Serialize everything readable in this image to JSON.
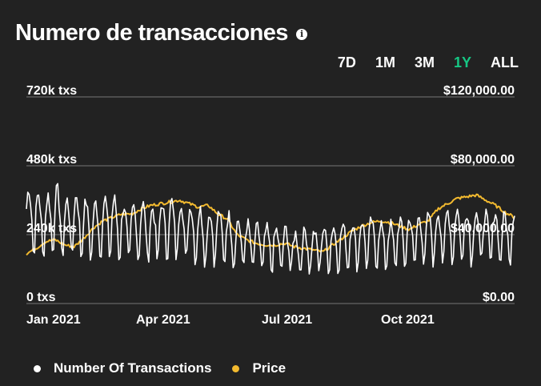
{
  "title": "Numero de transacciones",
  "info_icon": "info-icon",
  "ranges": [
    {
      "label": "7D",
      "active": false
    },
    {
      "label": "1M",
      "active": false
    },
    {
      "label": "3M",
      "active": false
    },
    {
      "label": "1Y",
      "active": true
    },
    {
      "label": "ALL",
      "active": false
    }
  ],
  "colors": {
    "background": "#222222",
    "transactions": "#ffffff",
    "price": "#f3ba2f",
    "active_range": "#16c784",
    "grid": "#777777"
  },
  "chart_data": {
    "type": "line",
    "title": "Numero de transacciones",
    "x_ticks": [
      "Jan 2021",
      "Apr 2021",
      "Jul 2021",
      "Oct 2021"
    ],
    "y_left_ticks": [
      "0 txs",
      "240k txs",
      "480k txs",
      "720k txs"
    ],
    "y_right_ticks": [
      "$0.00",
      "$40,000.00",
      "$80,000.00",
      "$120,000.00"
    ],
    "y_left_range": [
      0,
      720000
    ],
    "y_right_range": [
      0,
      120000
    ],
    "grid": true,
    "legend": "bottom-left",
    "series": [
      {
        "name": "Number Of Transactions",
        "axis": "left",
        "color": "#ffffff",
        "weekly_values": [
          330000,
          320000,
          300000,
          340000,
          290000,
          315000,
          295000,
          285000,
          300000,
          305000,
          280000,
          275000,
          290000,
          270000,
          285000,
          295000,
          290000,
          280000,
          270000,
          260000,
          265000,
          255000,
          240000,
          230000,
          220000,
          215000,
          210000,
          215000,
          200000,
          210000,
          205000,
          215000,
          220000,
          225000,
          230000,
          235000,
          240000,
          230000,
          225000,
          240000,
          245000,
          250000,
          255000,
          260000,
          265000,
          270000,
          262000,
          268000,
          258000,
          262000,
          255000,
          258000
        ]
      },
      {
        "name": "Price",
        "axis": "right",
        "color": "#f3ba2f",
        "weekly_values": [
          29000,
          32000,
          36000,
          37000,
          34000,
          33000,
          38000,
          44000,
          48000,
          50000,
          52000,
          52000,
          55000,
          57000,
          58000,
          59000,
          60000,
          58000,
          56000,
          57000,
          52000,
          49000,
          40000,
          37000,
          35000,
          34000,
          34000,
          35000,
          33000,
          32000,
          31000,
          30000,
          34000,
          38000,
          42000,
          45000,
          47000,
          48000,
          47000,
          45000,
          43000,
          46000,
          48000,
          55000,
          58000,
          61000,
          62000,
          63000,
          60000,
          57000,
          53000,
          50000
        ]
      }
    ]
  },
  "legend": {
    "items": [
      {
        "label": "Number Of Transactions",
        "color": "#ffffff"
      },
      {
        "label": "Price",
        "color": "#f3ba2f"
      }
    ]
  }
}
